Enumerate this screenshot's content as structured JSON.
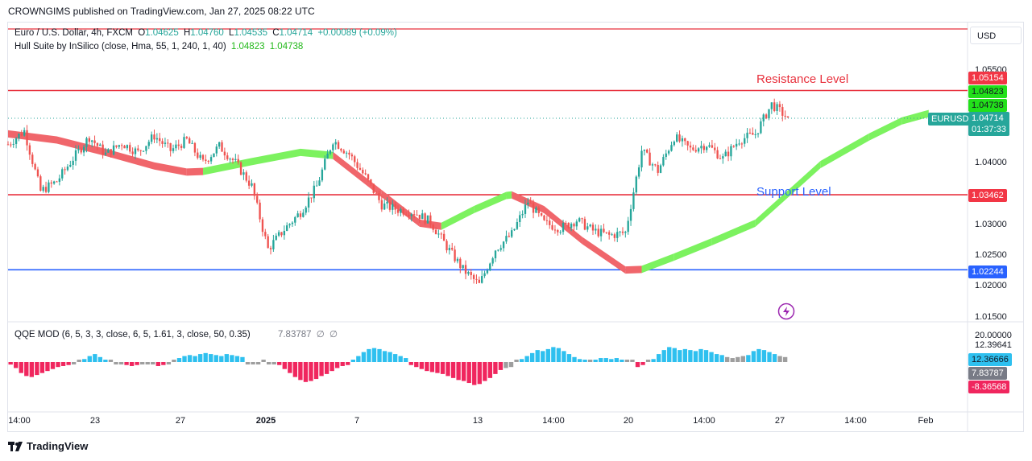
{
  "header": {
    "published": "CROWNGIMS published on TradingView.com, Jan 27, 2025 08:22 UTC"
  },
  "symbol_legend": {
    "title": "Euro / U.S. Dollar, 4h, FXCM",
    "o_label": "O",
    "o": "1.04625",
    "h_label": "H",
    "h": "1.04760",
    "l_label": "L",
    "l": "1.04535",
    "c_label": "C",
    "c": "1.04714",
    "change": "+0.00089 (+0.09%)"
  },
  "hull_legend": {
    "title": "Hull Suite by InSilico (close, Hma, 55, 1, 240, 1, 40)",
    "v1": "1.04823",
    "v2": "1.04738"
  },
  "qqe_legend": {
    "title": "QQE MOD (6, 5, 3, 3, close, 6, 5, 1.61, 3, close, 50, 0.35)",
    "value": "7.83787",
    "na1": "∅",
    "na2": "∅"
  },
  "currency_button": "USD",
  "annotations": {
    "resistance": "Resistance Level",
    "support": "Support Level"
  },
  "footer": {
    "brand": "TradingView"
  },
  "colors": {
    "up": "#26a69a",
    "down": "#ef5350",
    "hull_up": "#7cf25f",
    "hull_down": "#f0666b",
    "red_line": "#e8313d",
    "blue_line": "#2962ff",
    "qqe_blue": "#2ec0ef",
    "qqe_red": "#f0265e",
    "qqe_gray": "#9e9e9e"
  },
  "chart_data": {
    "type": "candlestick",
    "symbol": "EURUSD",
    "interval": "4h",
    "y_ticks": [
      "1.05500",
      "1.04000",
      "1.03000",
      "1.02500",
      "1.02000",
      "1.01500"
    ],
    "x_ticks": [
      "14:00",
      "23",
      "27",
      "2025",
      "7",
      "13",
      "14:00",
      "20",
      "14:00",
      "27",
      "14:00",
      "Feb"
    ],
    "levels": [
      {
        "name": "Resistance Level",
        "value": 1.05154
      },
      {
        "name": "Support Level",
        "value": 1.03462
      },
      {
        "name": "",
        "value": 1.02244
      }
    ],
    "price_labels": {
      "resistance": "1.05154",
      "hull_1": "1.04823",
      "hull_2": "1.04738",
      "last_symbol": "EURUSD",
      "last": "1.04714",
      "countdown": "01:37:33",
      "support": "1.03462",
      "lower": "1.02244"
    },
    "price_path": [
      [
        0,
        1.0428
      ],
      [
        6,
        1.045
      ],
      [
        12,
        1.0352
      ],
      [
        18,
        1.0368
      ],
      [
        24,
        1.0405
      ],
      [
        30,
        1.044
      ],
      [
        36,
        1.0412
      ],
      [
        42,
        1.043
      ],
      [
        48,
        1.0415
      ],
      [
        54,
        1.0442
      ],
      [
        60,
        1.0418
      ],
      [
        66,
        1.0435
      ],
      [
        72,
        1.0398
      ],
      [
        78,
        1.0425
      ],
      [
        84,
        1.0398
      ],
      [
        90,
        1.036
      ],
      [
        96,
        1.0258
      ],
      [
        102,
        1.029
      ],
      [
        108,
        1.0318
      ],
      [
        114,
        1.036
      ],
      [
        120,
        1.0435
      ],
      [
        126,
        1.0412
      ],
      [
        132,
        1.0375
      ],
      [
        138,
        1.033
      ],
      [
        144,
        1.0322
      ],
      [
        150,
        1.0318
      ],
      [
        156,
        1.0302
      ],
      [
        162,
        1.0262
      ],
      [
        168,
        1.0225
      ],
      [
        174,
        1.02
      ],
      [
        180,
        1.0258
      ],
      [
        186,
        1.0282
      ],
      [
        192,
        1.0335
      ],
      [
        198,
        1.03
      ],
      [
        204,
        1.0292
      ],
      [
        210,
        1.0305
      ],
      [
        216,
        1.0288
      ],
      [
        222,
        1.028
      ],
      [
        228,
        1.0285
      ],
      [
        234,
        1.0418
      ],
      [
        240,
        1.0385
      ],
      [
        246,
        1.044
      ],
      [
        252,
        1.042
      ],
      [
        258,
        1.0428
      ],
      [
        264,
        1.0405
      ],
      [
        270,
        1.0435
      ],
      [
        276,
        1.0445
      ],
      [
        282,
        1.0493
      ],
      [
        288,
        1.0471
      ]
    ],
    "hull": [
      [
        0,
        1.0445,
        "down"
      ],
      [
        18,
        1.0435,
        "down"
      ],
      [
        36,
        1.0415,
        "down"
      ],
      [
        54,
        1.0393,
        "down"
      ],
      [
        66,
        1.0383,
        "down"
      ],
      [
        72,
        1.0384,
        "up"
      ],
      [
        90,
        1.04,
        "up"
      ],
      [
        108,
        1.0415,
        "up"
      ],
      [
        120,
        1.041,
        "down"
      ],
      [
        138,
        1.0348,
        "down"
      ],
      [
        152,
        1.03,
        "down"
      ],
      [
        160,
        1.0295,
        "up"
      ],
      [
        172,
        1.0322,
        "up"
      ],
      [
        184,
        1.0345,
        "up"
      ],
      [
        186,
        1.0346,
        "down"
      ],
      [
        198,
        1.0322,
        "down"
      ],
      [
        212,
        1.0272,
        "down"
      ],
      [
        228,
        1.0224,
        "down"
      ],
      [
        234,
        1.0225,
        "up"
      ],
      [
        246,
        1.0245,
        "up"
      ],
      [
        260,
        1.027,
        "up"
      ],
      [
        276,
        1.03,
        "up"
      ],
      [
        300,
        1.0395,
        "up"
      ],
      [
        318,
        1.044,
        "up"
      ],
      [
        330,
        1.0466,
        "up"
      ],
      [
        340,
        1.0478,
        "up"
      ]
    ],
    "qqe": {
      "title": "QQE MOD",
      "y_ticks": [
        "20.00000",
        "12.39641"
      ],
      "labels": {
        "blue": "12.36666",
        "gray": "7.83787",
        "red": "-8.36568"
      },
      "bars": [
        [
          -5,
          "red"
        ],
        [
          -12,
          "red"
        ],
        [
          -22,
          "red"
        ],
        [
          -28,
          "red"
        ],
        [
          -30,
          "red"
        ],
        [
          -26,
          "red"
        ],
        [
          -22,
          "red"
        ],
        [
          -18,
          "red"
        ],
        [
          -14,
          "red"
        ],
        [
          -10,
          "red"
        ],
        [
          -8,
          "red"
        ],
        [
          -6,
          "red"
        ],
        [
          -2,
          "gray"
        ],
        [
          0,
          "gray"
        ],
        [
          6,
          "blue"
        ],
        [
          12,
          "blue"
        ],
        [
          16,
          "blue"
        ],
        [
          10,
          "blue"
        ],
        [
          4,
          "blue"
        ],
        [
          0,
          "gray"
        ],
        [
          -2,
          "gray"
        ],
        [
          -4,
          "gray"
        ],
        [
          -6,
          "red"
        ],
        [
          -8,
          "red"
        ],
        [
          -6,
          "red"
        ],
        [
          -4,
          "gray"
        ],
        [
          -2,
          "gray"
        ],
        [
          -4,
          "gray"
        ],
        [
          -8,
          "red"
        ],
        [
          -6,
          "red"
        ],
        [
          -3,
          "gray"
        ],
        [
          0,
          "gray"
        ],
        [
          8,
          "blue"
        ],
        [
          12,
          "blue"
        ],
        [
          14,
          "blue"
        ],
        [
          12,
          "blue"
        ],
        [
          16,
          "blue"
        ],
        [
          18,
          "blue"
        ],
        [
          16,
          "blue"
        ],
        [
          14,
          "blue"
        ],
        [
          12,
          "blue"
        ],
        [
          16,
          "blue"
        ],
        [
          14,
          "blue"
        ],
        [
          12,
          "blue"
        ],
        [
          10,
          "blue"
        ],
        [
          -2,
          "gray"
        ],
        [
          -4,
          "gray"
        ],
        [
          -2,
          "gray"
        ],
        [
          0,
          "gray"
        ],
        [
          -3,
          "gray"
        ],
        [
          -2,
          "gray"
        ],
        [
          -6,
          "red"
        ],
        [
          -14,
          "red"
        ],
        [
          -22,
          "red"
        ],
        [
          -30,
          "red"
        ],
        [
          -36,
          "red"
        ],
        [
          -40,
          "red"
        ],
        [
          -38,
          "red"
        ],
        [
          -34,
          "red"
        ],
        [
          -28,
          "red"
        ],
        [
          -24,
          "red"
        ],
        [
          -18,
          "red"
        ],
        [
          -12,
          "red"
        ],
        [
          -8,
          "red"
        ],
        [
          -6,
          "red"
        ],
        [
          4,
          "blue"
        ],
        [
          12,
          "blue"
        ],
        [
          20,
          "blue"
        ],
        [
          26,
          "blue"
        ],
        [
          28,
          "blue"
        ],
        [
          26,
          "blue"
        ],
        [
          22,
          "blue"
        ],
        [
          20,
          "blue"
        ],
        [
          16,
          "blue"
        ],
        [
          12,
          "blue"
        ],
        [
          8,
          "blue"
        ],
        [
          -6,
          "red"
        ],
        [
          -10,
          "red"
        ],
        [
          -14,
          "red"
        ],
        [
          -18,
          "red"
        ],
        [
          -20,
          "red"
        ],
        [
          -22,
          "red"
        ],
        [
          -24,
          "red"
        ],
        [
          -28,
          "red"
        ],
        [
          -32,
          "red"
        ],
        [
          -36,
          "red"
        ],
        [
          -38,
          "red"
        ],
        [
          -42,
          "red"
        ],
        [
          -46,
          "red"
        ],
        [
          -44,
          "red"
        ],
        [
          -38,
          "red"
        ],
        [
          -32,
          "red"
        ],
        [
          -24,
          "red"
        ],
        [
          -16,
          "red"
        ],
        [
          -12,
          "gray"
        ],
        [
          -10,
          "gray"
        ],
        [
          0,
          "gray"
        ],
        [
          6,
          "blue"
        ],
        [
          12,
          "blue"
        ],
        [
          18,
          "blue"
        ],
        [
          24,
          "blue"
        ],
        [
          22,
          "blue"
        ],
        [
          26,
          "blue"
        ],
        [
          30,
          "blue"
        ],
        [
          28,
          "blue"
        ],
        [
          22,
          "blue"
        ],
        [
          16,
          "blue"
        ],
        [
          10,
          "blue"
        ],
        [
          6,
          "blue"
        ],
        [
          2,
          "blue"
        ],
        [
          0,
          "gray"
        ],
        [
          4,
          "blue"
        ],
        [
          8,
          "blue"
        ],
        [
          8,
          "blue"
        ],
        [
          6,
          "blue"
        ],
        [
          8,
          "blue"
        ],
        [
          4,
          "blue"
        ],
        [
          0,
          "gray"
        ],
        [
          0,
          "gray"
        ],
        [
          -10,
          "red"
        ],
        [
          -6,
          "red"
        ],
        [
          0,
          "gray"
        ],
        [
          6,
          "blue"
        ],
        [
          16,
          "blue"
        ],
        [
          24,
          "blue"
        ],
        [
          30,
          "blue"
        ],
        [
          28,
          "blue"
        ],
        [
          24,
          "blue"
        ],
        [
          26,
          "blue"
        ],
        [
          24,
          "blue"
        ],
        [
          22,
          "blue"
        ],
        [
          26,
          "blue"
        ],
        [
          24,
          "blue"
        ],
        [
          20,
          "blue"
        ],
        [
          16,
          "blue"
        ],
        [
          14,
          "blue"
        ],
        [
          10,
          "gray"
        ],
        [
          8,
          "gray"
        ],
        [
          10,
          "gray"
        ],
        [
          12,
          "gray"
        ],
        [
          14,
          "blue"
        ],
        [
          22,
          "blue"
        ],
        [
          26,
          "blue"
        ],
        [
          24,
          "blue"
        ],
        [
          20,
          "blue"
        ],
        [
          16,
          "blue"
        ],
        [
          12,
          "gray"
        ],
        [
          10,
          "gray"
        ]
      ]
    }
  }
}
